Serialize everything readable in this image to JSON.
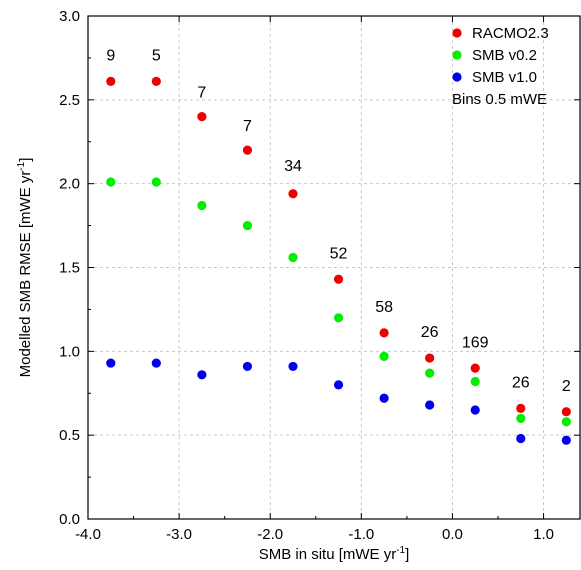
{
  "chart_data": {
    "type": "scatter",
    "xlabel_main": "SMB in situ [mWE yr",
    "xlabel_sup": "-1",
    "xlabel_end": "]",
    "ylabel_main": "Modelled SMB RMSE [mWE yr",
    "ylabel_sup": "-1",
    "ylabel_end": "]",
    "xlim": [
      -4.0,
      1.4
    ],
    "ylim": [
      0.0,
      3.0
    ],
    "xticks": [
      -4.0,
      -3.0,
      -2.0,
      -1.0,
      0.0,
      1.0
    ],
    "xtick_labels": [
      "-4.0",
      "-3.0",
      "-2.0",
      "-1.0",
      "0.0",
      "1.0"
    ],
    "yticks": [
      0.0,
      0.5,
      1.0,
      1.5,
      2.0,
      2.5,
      3.0
    ],
    "ytick_labels": [
      "0.0",
      "0.5",
      "1.0",
      "1.5",
      "2.0",
      "2.5",
      "3.0"
    ],
    "grid": true,
    "legend_position": "top-right",
    "legend_note": "Bins 0.5 mWE",
    "x": [
      -3.75,
      -3.25,
      -2.75,
      -2.25,
      -1.75,
      -1.25,
      -0.75,
      -0.25,
      0.25,
      0.75,
      1.25
    ],
    "series": [
      {
        "name": "RACMO2.3",
        "color": "#ee0000",
        "values": [
          2.61,
          2.61,
          2.4,
          2.2,
          1.94,
          1.43,
          1.11,
          0.96,
          0.9,
          0.66,
          0.64
        ]
      },
      {
        "name": "SMB v0.2",
        "color": "#00ee00",
        "values": [
          2.01,
          2.01,
          1.87,
          1.75,
          1.56,
          1.2,
          0.97,
          0.87,
          0.82,
          0.6,
          0.58
        ]
      },
      {
        "name": "SMB v1.0",
        "color": "#0000ee",
        "values": [
          0.93,
          0.93,
          0.86,
          0.91,
          0.91,
          0.8,
          0.72,
          0.68,
          0.65,
          0.48,
          0.47
        ]
      }
    ],
    "counts": {
      "labels": [
        "9",
        "5",
        "7",
        "7",
        "34",
        "52",
        "58",
        "26",
        "169",
        "26",
        "2"
      ],
      "y": [
        2.77,
        2.77,
        2.55,
        2.35,
        2.11,
        1.59,
        1.27,
        1.12,
        1.06,
        0.82,
        0.8
      ]
    }
  }
}
